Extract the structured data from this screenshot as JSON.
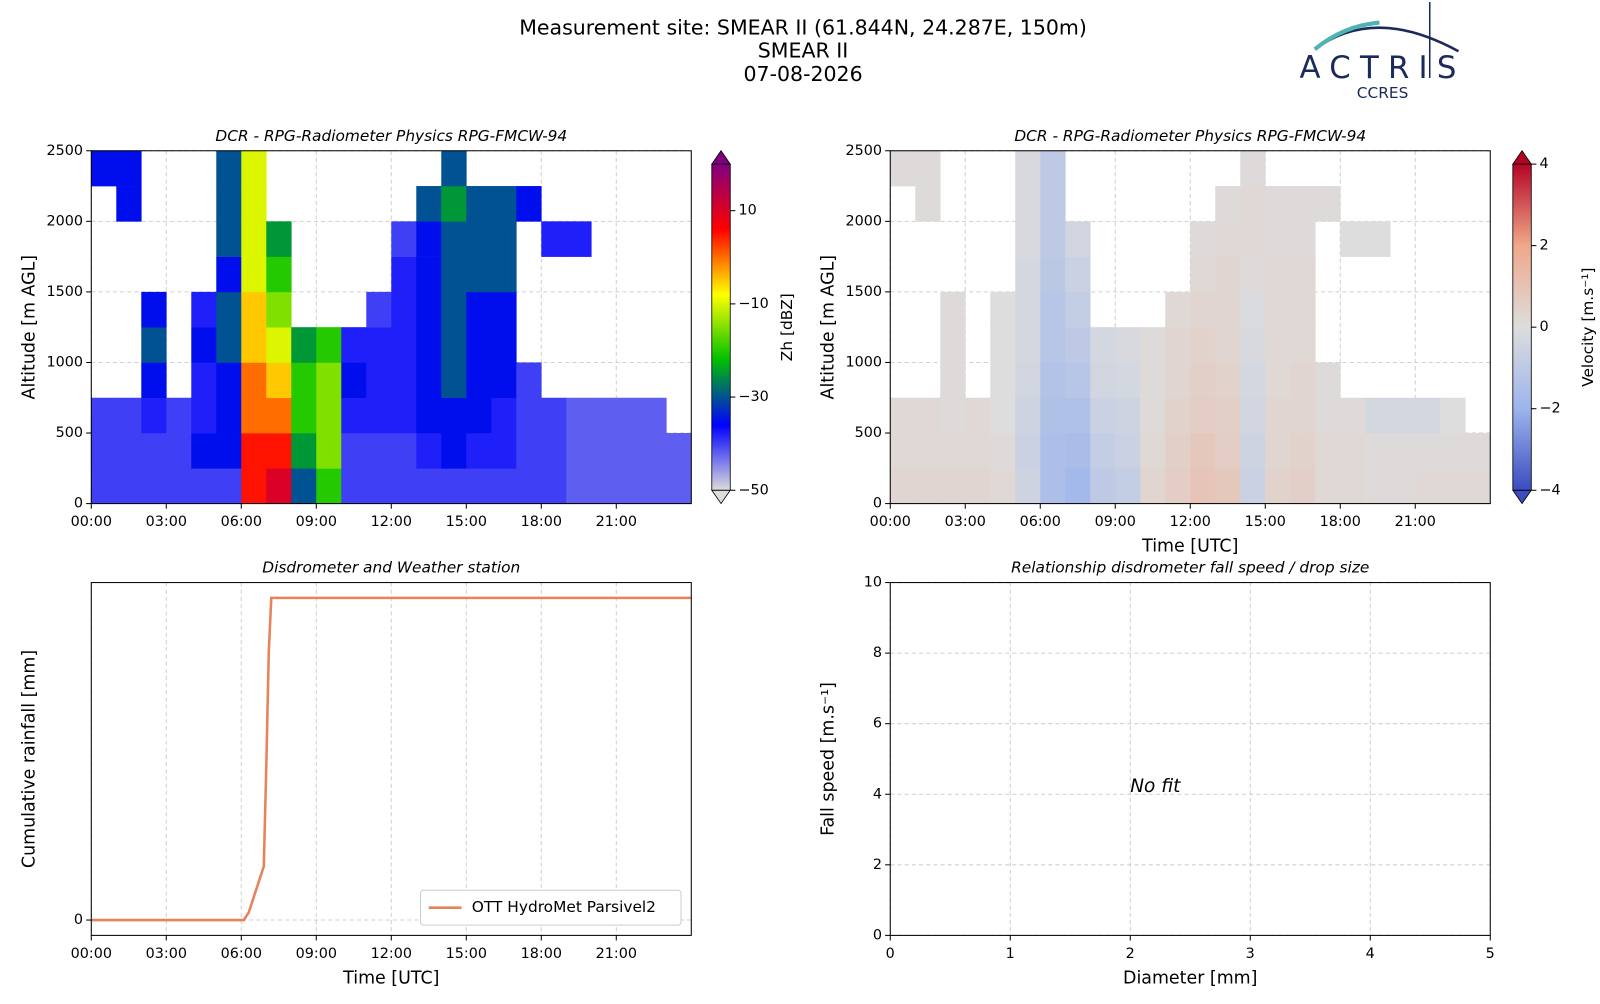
{
  "header": {
    "lines": [
      "Measurement site: SMEAR II (61.844N, 24.287E, 150m)",
      "SMEAR II",
      "07-08-2026"
    ]
  },
  "logo": {
    "name": "ACTRIS",
    "subtitle": "CCRES"
  },
  "chart_data": [
    {
      "type": "heatmap",
      "title": "DCR - RPG-Radiometer Physics RPG-FMCW-94",
      "y_label": "Altitude [m AGL]",
      "x": [
        0,
        1,
        2,
        3,
        4,
        5,
        6,
        7,
        8,
        9,
        10,
        11,
        12,
        13,
        14,
        15,
        16,
        17,
        18,
        19,
        20,
        21,
        22,
        23
      ],
      "y": [
        0,
        250,
        500,
        750,
        1000,
        1250,
        1500,
        1750,
        2000,
        2250
      ],
      "values": [
        [
          -40,
          -40,
          -40,
          null,
          null,
          null,
          null,
          null,
          null,
          -35
        ],
        [
          -40,
          -40,
          -40,
          null,
          null,
          null,
          null,
          null,
          -35,
          -35
        ],
        [
          -40,
          -40,
          -38,
          -35,
          -30,
          -35,
          null,
          null,
          null,
          null
        ],
        [
          -40,
          -40,
          -40,
          null,
          null,
          null,
          null,
          null,
          null,
          null
        ],
        [
          -40,
          -35,
          -38,
          -38,
          -35,
          -38,
          null,
          null,
          null,
          null
        ],
        [
          -40,
          -35,
          -35,
          -35,
          -30,
          -30,
          -35,
          -30,
          -30,
          -30
        ],
        [
          5,
          5,
          0,
          0,
          -5,
          -5,
          -10,
          -10,
          -10,
          -10
        ],
        [
          10,
          5,
          0,
          -5,
          -10,
          -15,
          -20,
          -25,
          null,
          null
        ],
        [
          -30,
          -25,
          -20,
          -20,
          -25,
          null,
          null,
          null,
          null,
          null
        ],
        [
          -20,
          -15,
          -15,
          -15,
          -20,
          null,
          null,
          null,
          null,
          null
        ],
        [
          -40,
          -40,
          -38,
          -35,
          -38,
          null,
          null,
          null,
          null,
          null
        ],
        [
          -40,
          -40,
          -38,
          -38,
          -38,
          -40,
          null,
          null,
          null,
          null
        ],
        [
          -40,
          -40,
          -38,
          -38,
          -38,
          -38,
          -38,
          -40,
          null,
          null
        ],
        [
          -40,
          -38,
          -35,
          -35,
          -35,
          -35,
          -35,
          -35,
          -30,
          null
        ],
        [
          -40,
          -35,
          -35,
          -30,
          -30,
          -30,
          -30,
          -30,
          -25,
          -30
        ],
        [
          -40,
          -38,
          -35,
          -35,
          -35,
          -35,
          -30,
          -30,
          -30,
          null
        ],
        [
          -40,
          -38,
          -38,
          -35,
          -35,
          -35,
          -30,
          -30,
          -30,
          null
        ],
        [
          -40,
          -40,
          -40,
          -40,
          null,
          null,
          null,
          null,
          -35,
          null
        ],
        [
          -40,
          -40,
          -40,
          null,
          null,
          null,
          null,
          -38,
          null,
          null
        ],
        [
          -42,
          -42,
          -42,
          null,
          null,
          null,
          null,
          -38,
          null,
          null
        ],
        [
          -42,
          -42,
          -42,
          null,
          null,
          null,
          null,
          null,
          null,
          null
        ],
        [
          -42,
          -42,
          -42,
          null,
          null,
          null,
          null,
          null,
          null,
          null
        ],
        [
          -42,
          -42,
          -42,
          null,
          null,
          null,
          null,
          null,
          null,
          null
        ],
        [
          -42,
          -42,
          null,
          null,
          null,
          null,
          null,
          null,
          null,
          null
        ]
      ],
      "xlim": [
        0,
        24
      ],
      "ylim": [
        0,
        2500
      ],
      "xticks": [
        {
          "value": 0,
          "label": "00:00"
        },
        {
          "value": 3,
          "label": "03:00"
        },
        {
          "value": 6,
          "label": "06:00"
        },
        {
          "value": 9,
          "label": "09:00"
        },
        {
          "value": 12,
          "label": "12:00"
        },
        {
          "value": 15,
          "label": "15:00"
        },
        {
          "value": 18,
          "label": "18:00"
        },
        {
          "value": 21,
          "label": "21:00"
        }
      ],
      "yticks": [
        0,
        500,
        1000,
        1500,
        2000,
        2500
      ],
      "grid": true,
      "colorbar": {
        "label": "Zh [dBZ]",
        "clim": [
          -50,
          20
        ],
        "ticks": [
          10,
          {
            "value": -10,
            "label": "−10"
          },
          {
            "value": -30,
            "label": "−30"
          },
          {
            "value": -50,
            "label": "−50"
          }
        ],
        "colormap": [
          "#dcdcdc",
          "#0000ff",
          "#00c000",
          "#ffff00",
          "#ff0000",
          "#800080"
        ]
      }
    },
    {
      "type": "heatmap",
      "title": "DCR - RPG-Radiometer Physics RPG-FMCW-94",
      "y_label": "Altitude [m AGL]",
      "x_label": "Time [UTC]",
      "x": [
        0,
        1,
        2,
        3,
        4,
        5,
        6,
        7,
        8,
        9,
        10,
        11,
        12,
        13,
        14,
        15,
        16,
        17,
        18,
        19,
        20,
        21,
        22,
        23
      ],
      "y": [
        0,
        250,
        500,
        750,
        1000,
        1250,
        1500,
        1750,
        2000,
        2250
      ],
      "values": [
        [
          0.3,
          0.2,
          0.2,
          null,
          null,
          null,
          null,
          null,
          null,
          0.1
        ],
        [
          0.3,
          0.2,
          0.2,
          null,
          null,
          null,
          null,
          null,
          0.1,
          0.1
        ],
        [
          0.3,
          0.2,
          0.1,
          0.1,
          0.1,
          0.1,
          null,
          null,
          null,
          null
        ],
        [
          0.3,
          0.2,
          0.2,
          null,
          null,
          null,
          null,
          null,
          null,
          null
        ],
        [
          0.2,
          0.1,
          0.0,
          0.0,
          0.0,
          0.0,
          null,
          null,
          null,
          null
        ],
        [
          -0.5,
          -0.6,
          -0.5,
          -0.4,
          -0.3,
          -0.3,
          -0.3,
          -0.2,
          -0.2,
          -0.2
        ],
        [
          -1.5,
          -1.5,
          -1.4,
          -1.3,
          -1.2,
          -1.2,
          -1.1,
          -1.0,
          -1.0,
          -1.0
        ],
        [
          -1.8,
          -1.6,
          -1.4,
          -1.2,
          -1.0,
          -0.8,
          -0.6,
          -0.4,
          null,
          null
        ],
        [
          -1.0,
          -0.8,
          -0.6,
          -0.4,
          -0.3,
          null,
          null,
          null,
          null,
          null
        ],
        [
          -0.8,
          -0.6,
          -0.5,
          -0.3,
          -0.2,
          null,
          null,
          null,
          null,
          null
        ],
        [
          0.3,
          0.2,
          0.1,
          0.1,
          0.1,
          null,
          null,
          null,
          null,
          null
        ],
        [
          0.6,
          0.5,
          0.4,
          0.3,
          0.3,
          0.2,
          null,
          null,
          null,
          null
        ],
        [
          0.9,
          0.8,
          0.6,
          0.5,
          0.4,
          0.3,
          0.2,
          0.1,
          null,
          null
        ],
        [
          0.8,
          0.6,
          0.5,
          0.4,
          0.3,
          0.3,
          0.3,
          0.2,
          0.1,
          null
        ],
        [
          -0.6,
          -0.5,
          -0.4,
          -0.3,
          -0.2,
          -0.1,
          0.1,
          0.2,
          0.2,
          0.1
        ],
        [
          0.4,
          0.3,
          0.3,
          0.2,
          0.2,
          0.2,
          0.2,
          0.1,
          0.1,
          null
        ],
        [
          0.5,
          0.4,
          0.3,
          0.3,
          0.2,
          0.2,
          0.2,
          0.1,
          0.1,
          null
        ],
        [
          0.2,
          0.2,
          0.1,
          0.1,
          null,
          null,
          null,
          null,
          0.1,
          null
        ],
        [
          0.2,
          0.2,
          0.1,
          null,
          null,
          null,
          null,
          0.0,
          null,
          null
        ],
        [
          0.1,
          0.1,
          -0.3,
          null,
          null,
          null,
          null,
          0.0,
          null,
          null
        ],
        [
          0.1,
          0.1,
          -0.3,
          null,
          null,
          null,
          null,
          null,
          null,
          null
        ],
        [
          0.2,
          0.1,
          -0.3,
          null,
          null,
          null,
          null,
          null,
          null,
          null
        ],
        [
          0.2,
          0.1,
          0.0,
          null,
          null,
          null,
          null,
          null,
          null,
          null
        ],
        [
          0.2,
          0.1,
          null,
          null,
          null,
          null,
          null,
          null,
          null,
          null
        ]
      ],
      "xlim": [
        0,
        24
      ],
      "ylim": [
        0,
        2500
      ],
      "xticks": [
        {
          "value": 0,
          "label": "00:00"
        },
        {
          "value": 3,
          "label": "03:00"
        },
        {
          "value": 6,
          "label": "06:00"
        },
        {
          "value": 9,
          "label": "09:00"
        },
        {
          "value": 12,
          "label": "12:00"
        },
        {
          "value": 15,
          "label": "15:00"
        },
        {
          "value": 18,
          "label": "18:00"
        },
        {
          "value": 21,
          "label": "21:00"
        }
      ],
      "yticks": [
        0,
        500,
        1000,
        1500,
        2000,
        2500
      ],
      "grid": true,
      "colorbar": {
        "label": "Velocity [m.s⁻¹]",
        "clim": [
          -4,
          4
        ],
        "ticks": [
          4,
          2,
          0,
          {
            "value": -2,
            "label": "−2"
          },
          {
            "value": -4,
            "label": "−4"
          }
        ],
        "colormap": [
          "#3a4cc0",
          "#9db5ec",
          "#dddddd",
          "#f0a88a",
          "#b40426"
        ]
      }
    },
    {
      "type": "line",
      "title": "Disdrometer and Weather station",
      "x_label": "Time [UTC]",
      "y_label": "Cumulative rainfall [mm]",
      "x": [
        0,
        6.1,
        6.3,
        6.5,
        6.7,
        6.9,
        7.0,
        7.1,
        7.2,
        24
      ],
      "series": [
        {
          "name": "OTT HydroMet Parsivel2",
          "color": "#e8825a",
          "values": [
            0,
            0,
            0.1,
            0.3,
            0.5,
            0.7,
            2,
            3.5,
            4.2,
            4.2
          ]
        }
      ],
      "xlim": [
        0,
        24
      ],
      "ylim": [
        -0.2,
        4.4
      ],
      "xticks": [
        {
          "value": 0,
          "label": "00:00"
        },
        {
          "value": 3,
          "label": "03:00"
        },
        {
          "value": 6,
          "label": "06:00"
        },
        {
          "value": 9,
          "label": "09:00"
        },
        {
          "value": 12,
          "label": "12:00"
        },
        {
          "value": 15,
          "label": "15:00"
        },
        {
          "value": 18,
          "label": "18:00"
        },
        {
          "value": 21,
          "label": "21:00"
        }
      ],
      "yticks": [
        0
      ],
      "grid": true,
      "legend": "lower right"
    },
    {
      "type": "scatter",
      "title": "Relationship disdrometer fall speed / drop size",
      "x_label": "Diameter [mm]",
      "y_label": "Fall speed [m.s⁻¹]",
      "annotation": "No fit",
      "xlim": [
        0,
        5
      ],
      "ylim": [
        0,
        10
      ],
      "xticks": [
        0,
        1,
        2,
        3,
        4,
        5
      ],
      "yticks": [
        0,
        2,
        4,
        6,
        8,
        10
      ],
      "grid": true
    }
  ]
}
